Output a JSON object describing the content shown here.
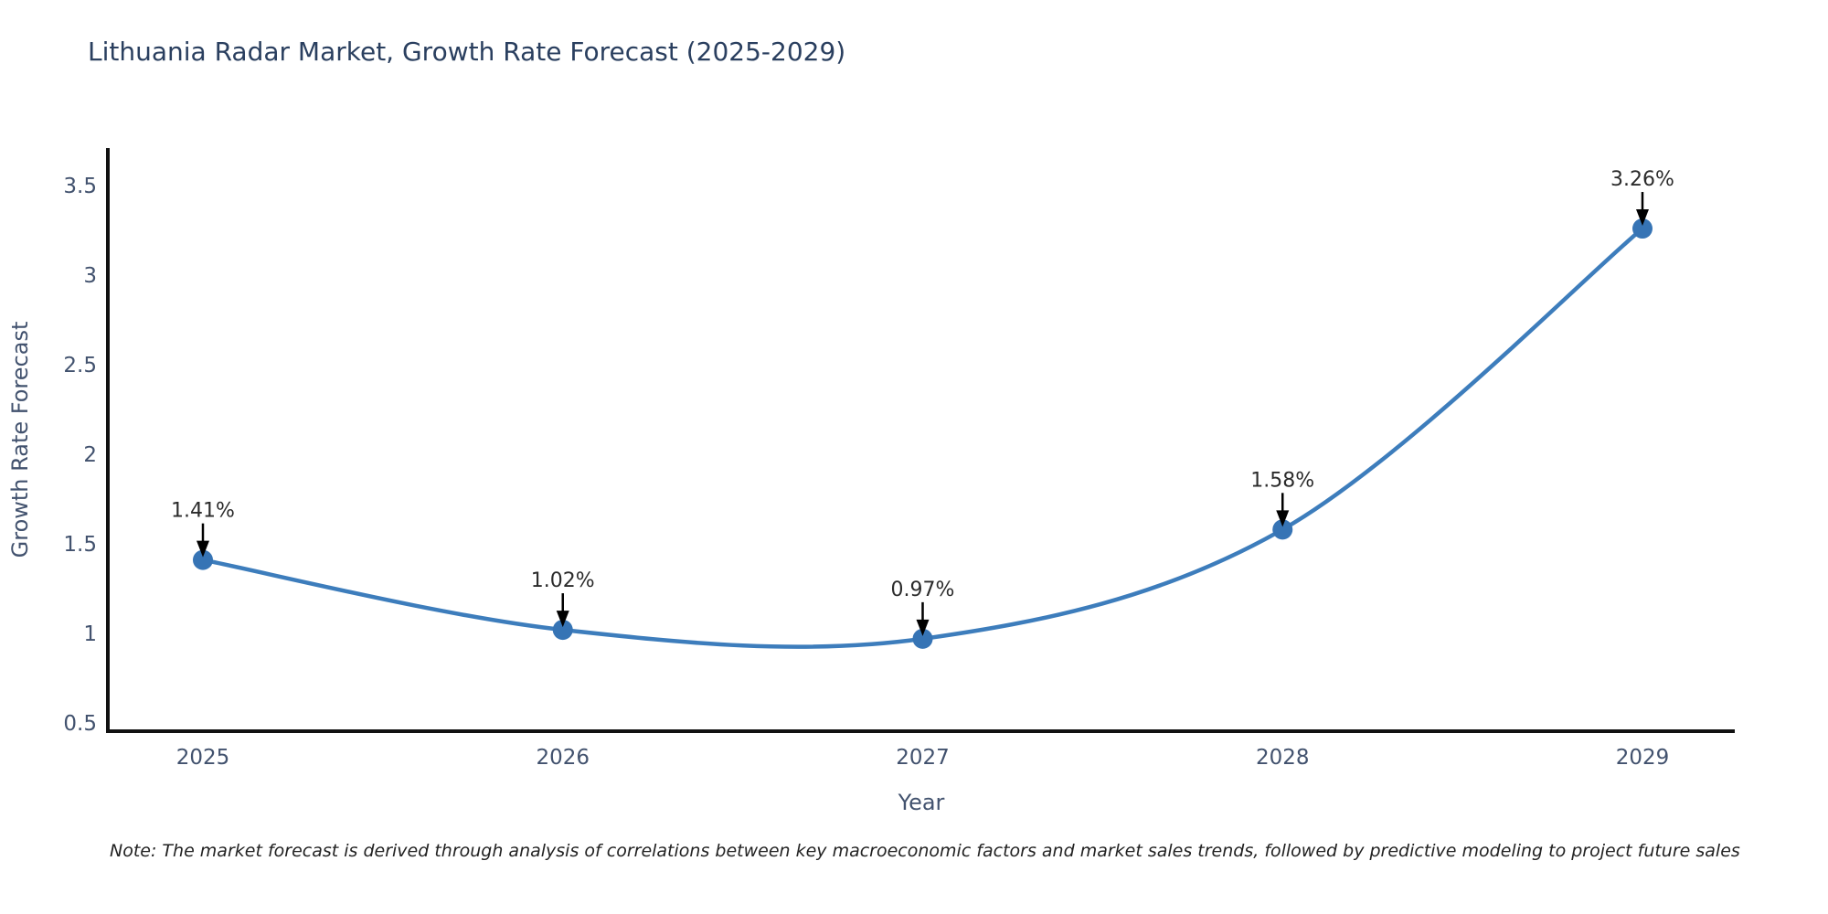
{
  "title": "Lithuania Radar Market, Growth Rate Forecast (2025-2029)",
  "note": "Note: The market forecast is derived through analysis of correlations between key macroeconomic factors and market sales trends, followed by predictive modeling to project future sales",
  "chart_data": {
    "type": "line",
    "line_shape": "spline",
    "title": "Lithuania Radar Market, Growth Rate Forecast (2025-2029)",
    "xlabel": "Year",
    "ylabel": "Growth Rate Forecast",
    "categories": [
      "2025",
      "2026",
      "2027",
      "2028",
      "2029"
    ],
    "values": [
      1.41,
      1.02,
      0.97,
      1.58,
      3.26
    ],
    "point_labels": [
      "1.41%",
      "1.02%",
      "0.97%",
      "1.58%",
      "3.26%"
    ],
    "y_ticks": [
      "0.5",
      "1",
      "1.5",
      "2",
      "2.5",
      "3",
      "3.5"
    ],
    "y_tick_values": [
      0.5,
      1,
      1.5,
      2,
      2.5,
      3,
      3.5
    ],
    "ylim": [
      0.45,
      3.72
    ],
    "grid": false,
    "legend": "none",
    "colors": {
      "line": "#3d7dbc",
      "marker": "#3674b5",
      "axis_line": "#111111",
      "tick_label": "#42526e",
      "axis_title": "#42526e",
      "title": "#2a3f5f",
      "annotation_text": "#2b2b2b",
      "annotation_arrow": "#000000"
    }
  }
}
